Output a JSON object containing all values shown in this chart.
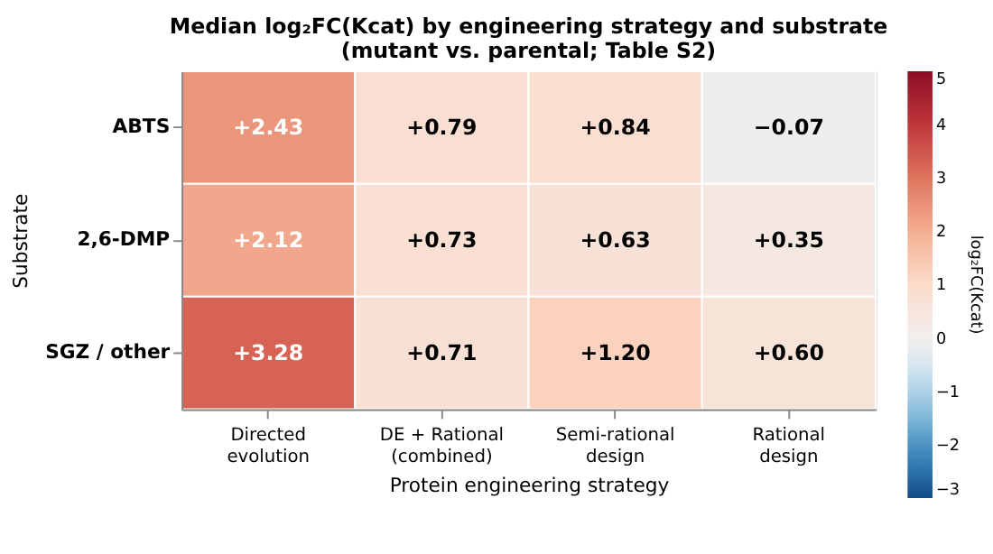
{
  "chart_data": {
    "type": "heatmap",
    "title": "Median log₂FC(Kcat) by engineering strategy and substrate",
    "subtitle": "(mutant vs. parental; Table S2)",
    "xlabel": "Protein engineering strategy",
    "ylabel": "Substrate",
    "clabel": "log₂FC(Kcat)",
    "categories": [
      "Directed\nevolution",
      "DE + Rational\n(combined)",
      "Semi-rational\ndesign",
      "Rational\ndesign"
    ],
    "y_categories": [
      "ABTS",
      "2,6-DMP",
      "SGZ / other"
    ],
    "cells": [
      [
        2.43,
        0.79,
        0.84,
        -0.07
      ],
      [
        2.12,
        0.73,
        0.63,
        0.35
      ],
      [
        3.28,
        0.71,
        1.2,
        0.6
      ]
    ],
    "cell_labels": [
      [
        "+2.43",
        "+0.79",
        "+0.84",
        "−0.07"
      ],
      [
        "+2.12",
        "+0.73",
        "+0.63",
        "+0.35"
      ],
      [
        "+3.28",
        "+0.71",
        "+1.20",
        "+0.60"
      ]
    ],
    "clim": [
      -3,
      5
    ],
    "cticks": [
      -3,
      -2,
      -1,
      0,
      1,
      2,
      3,
      4,
      5
    ]
  }
}
